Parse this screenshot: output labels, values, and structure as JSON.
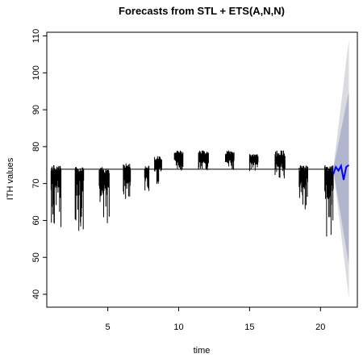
{
  "chart_data": {
    "type": "line",
    "title": "Forecasts from STL +  ETS(A,N,N)",
    "xlabel": "time",
    "ylabel": "ITH values",
    "xlim": [
      0.7,
      22.6
    ],
    "ylim": [
      36.5,
      111
    ],
    "x_ticks": [
      5,
      10,
      15,
      20
    ],
    "y_ticks": [
      40,
      50,
      60,
      70,
      80,
      90,
      100,
      110
    ],
    "grid": false,
    "baseline": 73.9,
    "colors": {
      "observed": "#000000",
      "forecast": "#0000ff",
      "band_80": "#b1b5ce",
      "band_95": "#dbdbdf"
    },
    "observed_segments": [
      {
        "x": [
          1.0,
          1.7
        ],
        "center": 71.5,
        "upper": 75.0,
        "lower": 55.0
      },
      {
        "x": [
          2.7,
          3.3
        ],
        "center": 71.0,
        "upper": 74.5,
        "lower": 57.0
      },
      {
        "x": [
          4.4,
          5.1
        ],
        "center": 71.0,
        "upper": 74.5,
        "lower": 58.0
      },
      {
        "x": [
          6.1,
          6.6
        ],
        "center": 71.5,
        "upper": 75.5,
        "lower": 65.0
      },
      {
        "x": [
          7.6,
          7.9
        ],
        "center": 72.0,
        "upper": 75.0,
        "lower": 68.0
      },
      {
        "x": [
          8.3,
          8.8
        ],
        "center": 75.0,
        "upper": 77.5,
        "lower": 69.5
      },
      {
        "x": [
          9.7,
          10.3
        ],
        "center": 76.5,
        "upper": 79.0,
        "lower": 73.5
      },
      {
        "x": [
          11.4,
          12.1
        ],
        "center": 76.5,
        "upper": 79.0,
        "lower": 73.5
      },
      {
        "x": [
          13.3,
          13.9
        ],
        "center": 76.5,
        "upper": 79.0,
        "lower": 73.5
      },
      {
        "x": [
          15.0,
          15.6
        ],
        "center": 76.0,
        "upper": 78.0,
        "lower": 73.0
      },
      {
        "x": [
          16.8,
          17.5
        ],
        "center": 75.5,
        "upper": 79.0,
        "lower": 71.0
      },
      {
        "x": [
          18.5,
          19.1
        ],
        "center": 71.5,
        "upper": 75.0,
        "lower": 63.0
      },
      {
        "x": [
          20.3,
          20.9
        ],
        "center": 71.0,
        "upper": 75.0,
        "lower": 55.5
      }
    ],
    "forecast": {
      "x_start": 20.9,
      "x_end": 22.0,
      "mean": [
        72.5,
        74.5,
        73.5,
        74.8,
        71.0,
        74.5,
        75.0
      ],
      "interval_80_at_end": [
        48.0,
        95.0
      ],
      "interval_95_at_end": [
        39.0,
        109.0
      ]
    }
  }
}
